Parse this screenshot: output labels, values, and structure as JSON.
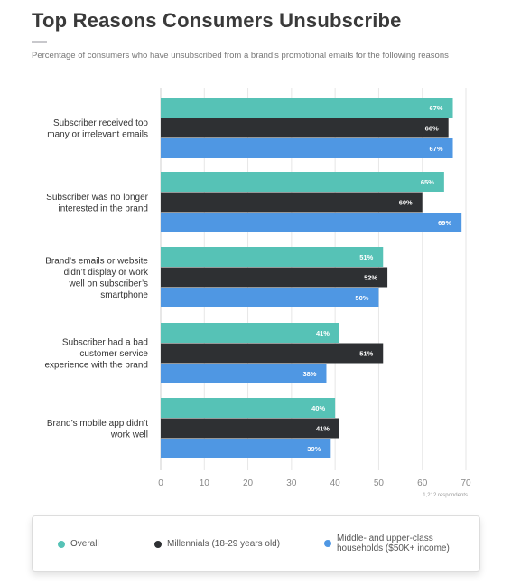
{
  "header": {
    "title": "Top Reasons Consumers Unsubscribe",
    "subtitle": "Percentage of consumers who have unsubscribed from a brand’s promotional emails for the following reasons"
  },
  "footnote": "1,212 respondents",
  "chart_data": {
    "type": "bar",
    "orientation": "horizontal",
    "categories": [
      "Subscriber received too many or irrelevant emails",
      "Subscriber was no longer interested in the brand",
      "Brand’s emails or website didn’t display or work well on subscriber’s smartphone",
      "Subscriber had a bad customer service experience with the brand",
      "Brand’s mobile app didn’t work well"
    ],
    "category_lines": [
      [
        "Subscriber received too",
        "many or irrelevant emails"
      ],
      [
        "Subscriber was no longer",
        "interested in the brand"
      ],
      [
        "Brand’s emails or website",
        "didn’t display or work",
        "well on subscriber’s",
        "smartphone"
      ],
      [
        "Subscriber had a bad",
        "customer service",
        "experience with the brand"
      ],
      [
        "Brand’s mobile app didn’t",
        "work well"
      ]
    ],
    "series": [
      {
        "name": "Overall",
        "color": "#56c2b6",
        "values": [
          67,
          65,
          51,
          41,
          40
        ]
      },
      {
        "name": "Millennials (18-29 years old)",
        "color": "#2e3033",
        "values": [
          66,
          60,
          52,
          51,
          41
        ]
      },
      {
        "name": "Middle- and upper-class households ($50K+ income)",
        "color": "#4f97e3",
        "values": [
          67,
          69,
          50,
          38,
          39
        ]
      }
    ],
    "value_suffix": "%",
    "xlim": [
      0,
      70
    ],
    "xticks": [
      0,
      10,
      20,
      30,
      40,
      50,
      60,
      70
    ],
    "grid": true,
    "legend_position": "bottom"
  },
  "legend": {
    "items": [
      {
        "lines": [
          "Overall"
        ],
        "color": "#56c2b6"
      },
      {
        "lines": [
          "Millennials (18-29 years old)"
        ],
        "color": "#2e3033"
      },
      {
        "lines": [
          "Middle- and upper-class",
          "households ($50K+ income)"
        ],
        "color": "#4f97e3"
      }
    ]
  }
}
